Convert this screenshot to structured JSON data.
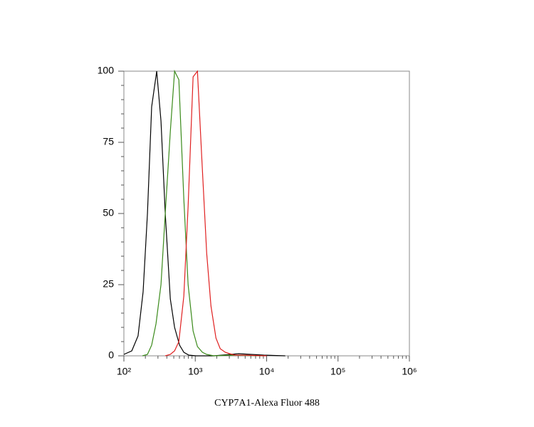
{
  "chart_data": {
    "type": "line",
    "x_label": "CYP7A1-Alexa Fluor 488",
    "xscale": "log",
    "xlim": [
      100,
      1000000
    ],
    "xticks": [
      {
        "value": 100,
        "label": "10²"
      },
      {
        "value": 1000,
        "label": "10³"
      },
      {
        "value": 10000,
        "label": "10⁴"
      },
      {
        "value": 100000,
        "label": "10⁵"
      },
      {
        "value": 1000000,
        "label": "10⁶"
      }
    ],
    "ylim": [
      0,
      100
    ],
    "yticks": [
      0,
      25,
      50,
      75,
      100
    ],
    "series": [
      {
        "color": "#000000",
        "x": [
          100,
          129,
          158,
          186,
          214,
          245,
          288,
          331,
          380,
          447,
          513,
          603,
          692,
          813,
          1023,
          1820,
          4074,
          9120,
          18197
        ],
        "values": [
          0.5,
          1.75,
          7,
          22.5,
          50,
          87.5,
          100,
          82.5,
          50,
          20,
          10,
          3.75,
          1.25,
          0.25,
          0,
          0,
          0.75,
          0.25,
          0
        ]
      },
      {
        "color": "#3a8a1a",
        "x": [
          182,
          214,
          245,
          282,
          331,
          380,
          447,
          513,
          589,
          692,
          794,
          933,
          1072,
          1259,
          1445,
          1820,
          3020,
          9120
        ],
        "values": [
          0,
          0.5,
          3.75,
          11.25,
          25,
          50,
          78.75,
          100,
          97,
          55,
          25,
          8.75,
          3.25,
          1.25,
          0.5,
          0,
          0.25,
          0
        ]
      },
      {
        "color": "#e02020",
        "x": [
          380,
          447,
          513,
          589,
          692,
          794,
          933,
          1072,
          1230,
          1445,
          1660,
          1950,
          2239,
          2630,
          3020,
          3631,
          4571,
          10000
        ],
        "values": [
          0,
          0.5,
          1.75,
          5,
          21,
          52.5,
          98,
          100,
          70,
          36,
          17.5,
          6.25,
          2.5,
          1.25,
          0.75,
          0.25,
          0.25,
          0
        ]
      }
    ]
  }
}
